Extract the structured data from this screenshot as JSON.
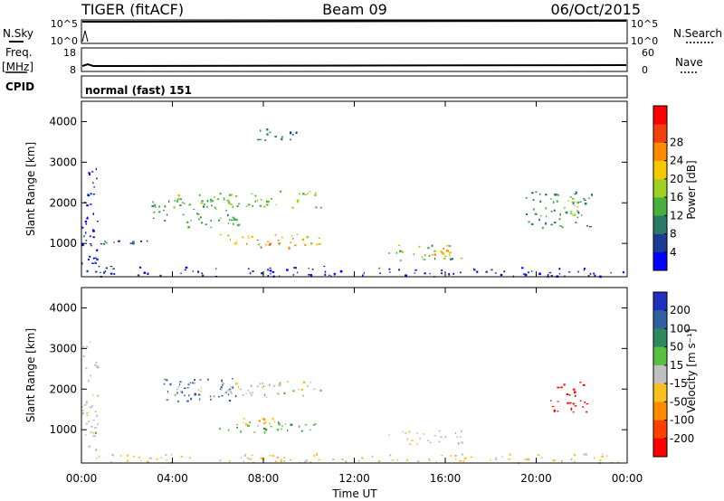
{
  "header": {
    "radar": "TIGER (fitACF)",
    "beam": "Beam 09",
    "date": "06/Oct/2015"
  },
  "strip": {
    "nsky_label": "N.Sky",
    "nsearch_label": "N.Search",
    "noise_left_ticks": [
      "10^5",
      "10^0"
    ],
    "noise_right_ticks": [
      "10^5",
      "10^0"
    ],
    "freq_label_1": "Freq.",
    "freq_label_2": "[MHz]",
    "freq_ticks": [
      "18",
      "8"
    ],
    "nave_label": "Nave",
    "nave_ticks": [
      "60",
      "0"
    ],
    "cpid_label": "CPID",
    "cpid_text": "normal (fast) 151"
  },
  "x_axis": {
    "label": "Time UT",
    "ticks": [
      "00:00",
      "04:00",
      "08:00",
      "12:00",
      "16:00",
      "20:00",
      "00:00"
    ]
  },
  "chart_data": [
    {
      "type": "heatmap",
      "parameter": "Power",
      "ylabel": "Slant Range [km]",
      "xlabel": "Time UT",
      "xlim_hours": [
        0,
        24
      ],
      "ylim": [
        180,
        4500
      ],
      "y_ticks": [
        "1000",
        "2000",
        "3000",
        "4000"
      ],
      "colorbar": {
        "label": "Power [dB]",
        "ticks": [
          "4",
          "8",
          "12",
          "16",
          "20",
          "24",
          "28"
        ],
        "colors": [
          "#0000ff",
          "#1a3c96",
          "#2a7a66",
          "#49b040",
          "#a0d020",
          "#f5c800",
          "#ff8a00",
          "#f04010",
          "#ff0000"
        ]
      },
      "echo_regions": [
        {
          "t": [
            0.0,
            0.7
          ],
          "r": [
            300,
            3200
          ],
          "value": 2
        },
        {
          "t": [
            0.7,
            11.5
          ],
          "r": [
            200,
            450
          ],
          "value": 3
        },
        {
          "t": [
            12.0,
            24.0
          ],
          "r": [
            200,
            420
          ],
          "value": 4
        },
        {
          "t": [
            0.7,
            3.0
          ],
          "r": [
            980,
            1080
          ],
          "value": 7
        },
        {
          "t": [
            3.0,
            7.0
          ],
          "r": [
            1400,
            2100
          ],
          "value": 12
        },
        {
          "t": [
            4.0,
            10.5
          ],
          "r": [
            1900,
            2300
          ],
          "value": 16
        },
        {
          "t": [
            6.0,
            10.5
          ],
          "r": [
            950,
            1250
          ],
          "value": 22
        },
        {
          "t": [
            7.5,
            9.8
          ],
          "r": [
            900,
            1150
          ],
          "value": 28
        },
        {
          "t": [
            7.5,
            9.5
          ],
          "r": [
            3500,
            3900
          ],
          "value": 9
        },
        {
          "t": [
            13.5,
            16.8
          ],
          "r": [
            600,
            1000
          ],
          "value": 14
        },
        {
          "t": [
            15.5,
            16.3
          ],
          "r": [
            650,
            900
          ],
          "value": 25
        },
        {
          "t": [
            19.5,
            22.5
          ],
          "r": [
            1400,
            2300
          ],
          "value": 11
        },
        {
          "t": [
            21.0,
            21.8
          ],
          "r": [
            1700,
            2100
          ],
          "value": 19
        }
      ]
    },
    {
      "type": "heatmap",
      "parameter": "Velocity",
      "ylabel": "Slant Range [km]",
      "xlabel": "Time UT",
      "xlim_hours": [
        0,
        24
      ],
      "ylim": [
        180,
        4500
      ],
      "y_ticks": [
        "1000",
        "2000",
        "3000",
        "4000"
      ],
      "colorbar": {
        "label": "Velocity [m s⁻¹]",
        "ticks": [
          "200",
          "100",
          "50",
          "15",
          "-15",
          "-50",
          "-100",
          "-200"
        ],
        "colors": [
          "#2030c0",
          "#3060a0",
          "#2e8a5e",
          "#58c040",
          "#c0c0c0",
          "#f8c020",
          "#ff8c00",
          "#ff4000",
          "#ff0000"
        ]
      },
      "echo_regions": [
        {
          "t": [
            0.0,
            0.7
          ],
          "r": [
            300,
            3200
          ],
          "value": 0
        },
        {
          "t": [
            0.7,
            24.0
          ],
          "r": [
            200,
            420
          ],
          "value": -20
        },
        {
          "t": [
            3.5,
            7.0
          ],
          "r": [
            1700,
            2300
          ],
          "value": 180
        },
        {
          "t": [
            4.0,
            10.5
          ],
          "r": [
            1800,
            2200
          ],
          "value": 0
        },
        {
          "t": [
            6.0,
            10.5
          ],
          "r": [
            950,
            1250
          ],
          "value": 40
        },
        {
          "t": [
            7.0,
            8.5
          ],
          "r": [
            1150,
            1300
          ],
          "value": -40
        },
        {
          "t": [
            13.5,
            16.8
          ],
          "r": [
            650,
            1000
          ],
          "value": 0
        },
        {
          "t": [
            20.5,
            22.2
          ],
          "r": [
            1400,
            2200
          ],
          "value": -220
        }
      ]
    }
  ]
}
